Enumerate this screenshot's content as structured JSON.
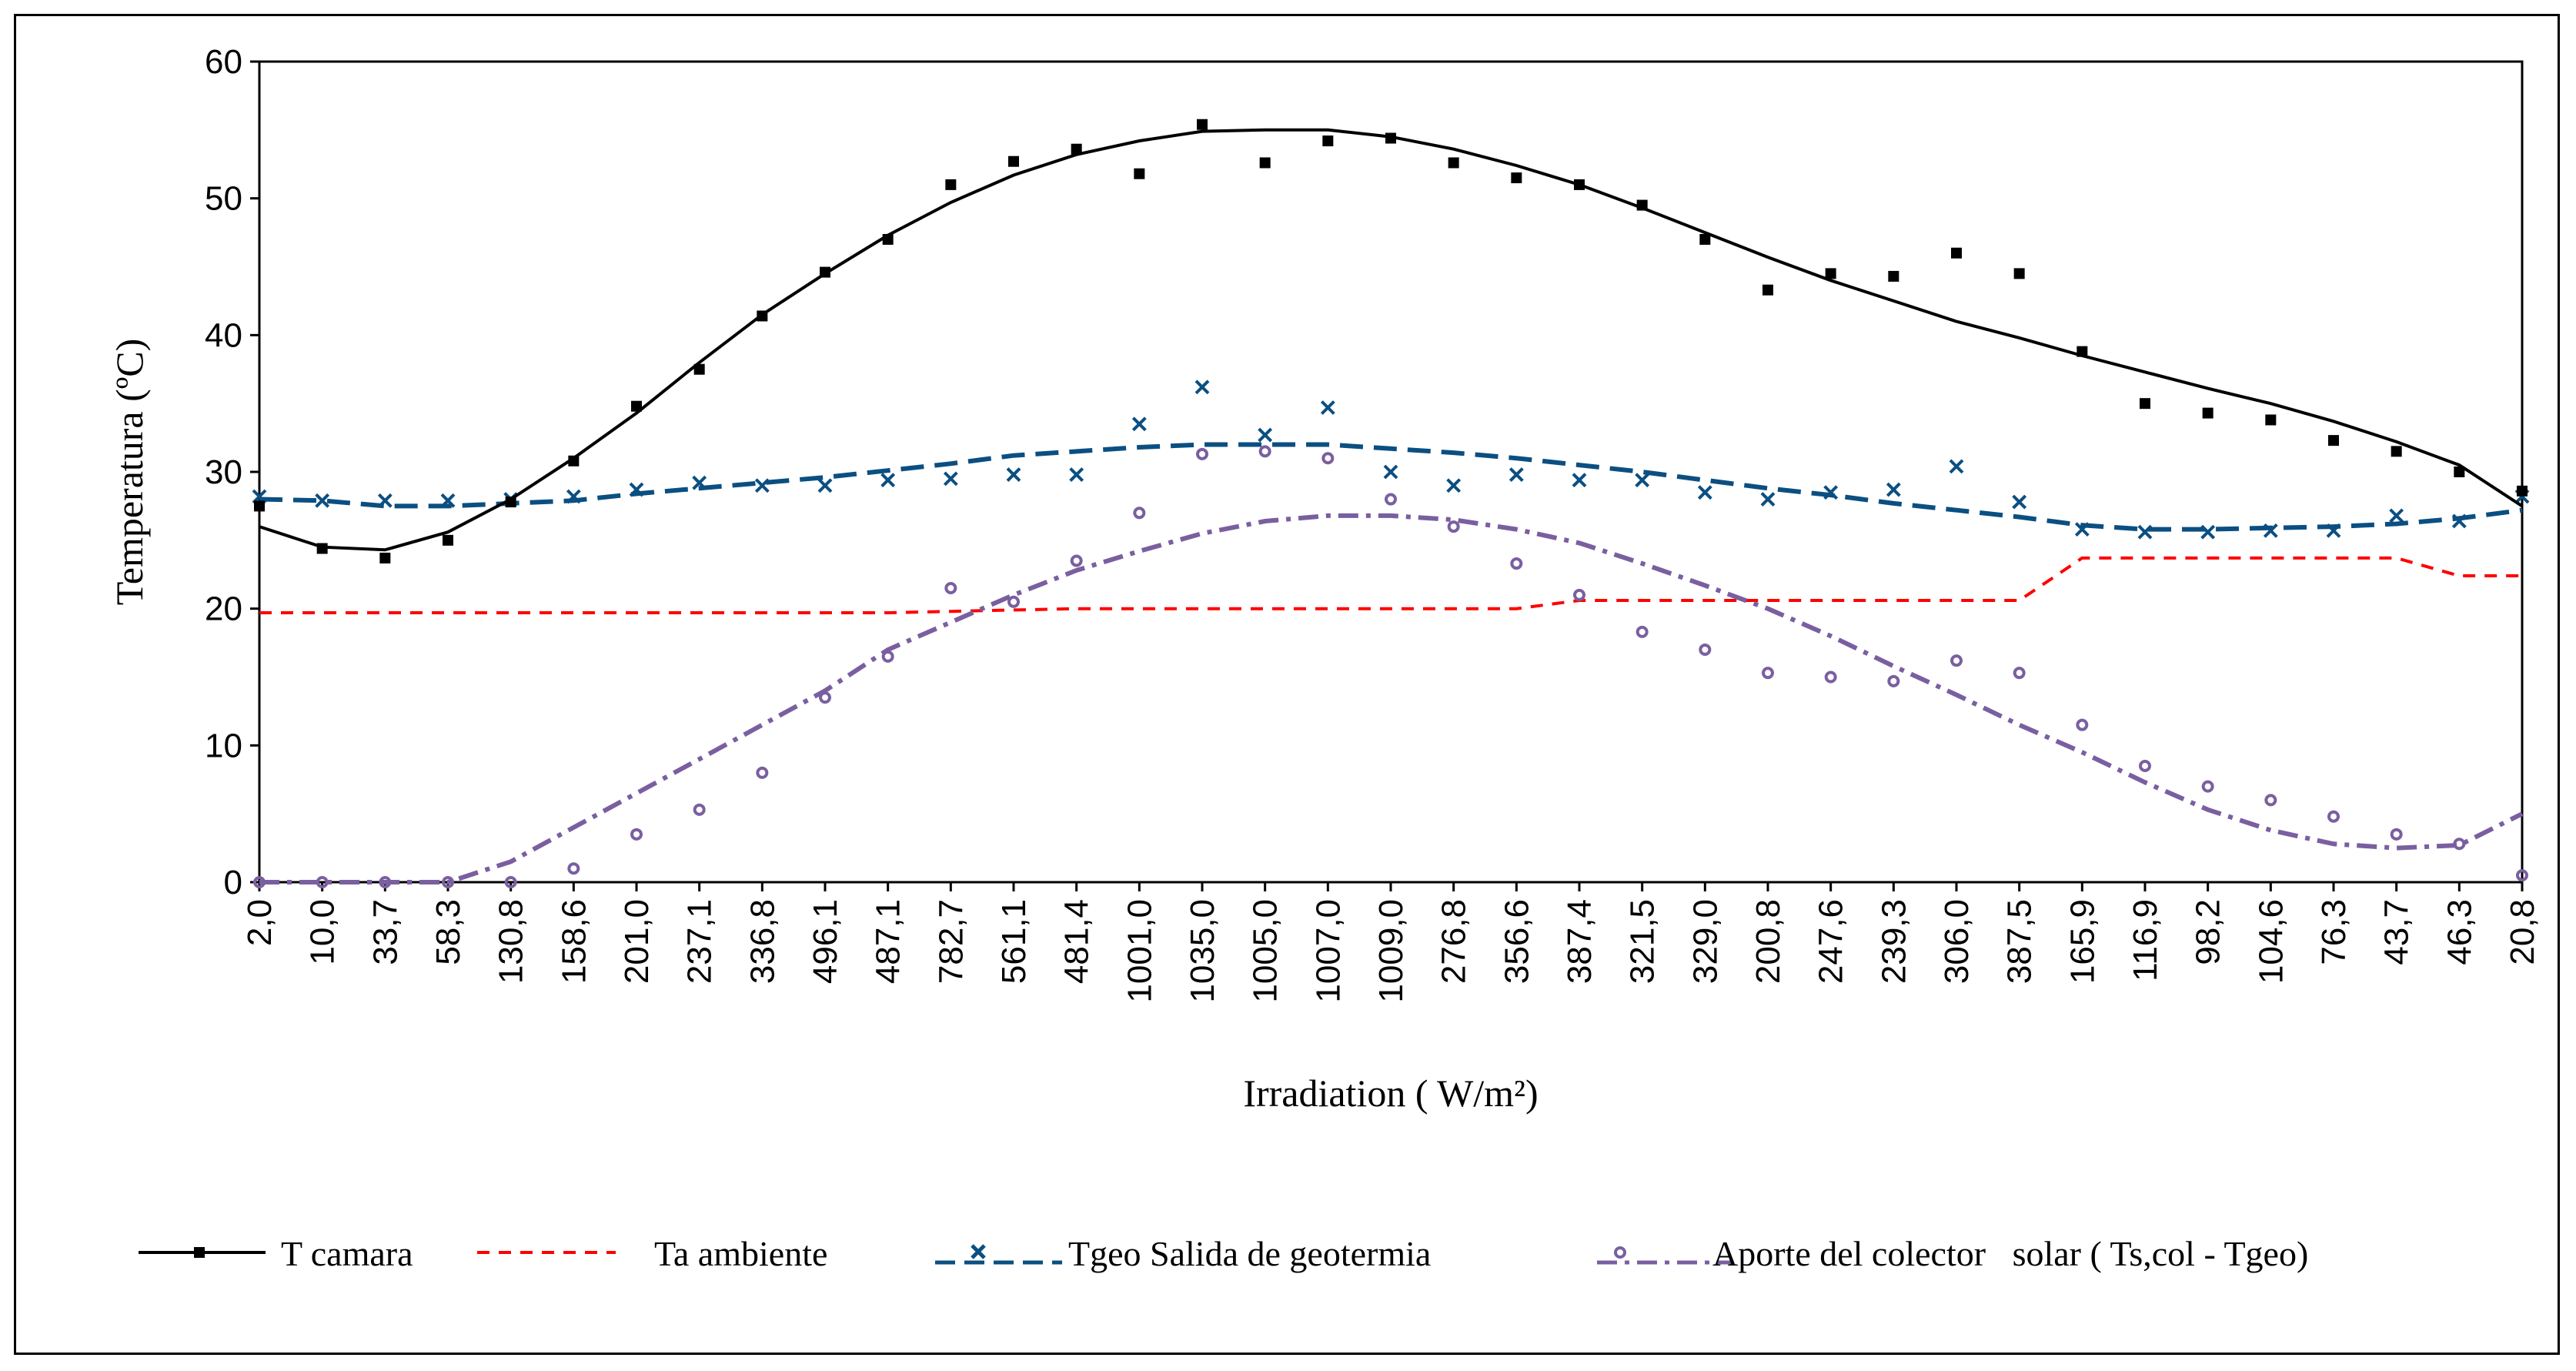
{
  "chart_data": {
    "type": "line",
    "title": "",
    "xlabel": "Irradiation ( W/m²)",
    "ylabel": "Temperatura (ºC)",
    "ylim": [
      0,
      60
    ],
    "yticks": [
      0,
      10,
      20,
      30,
      40,
      50,
      60
    ],
    "grid": false,
    "legend_position": "bottom",
    "colors": {
      "tcam": "#000000",
      "ta": "#ff0000",
      "tgeo": "#0b4f82",
      "aporte": "#7a5fa0"
    },
    "categories": [
      "2,0",
      "10,0",
      "33,7",
      "58,3",
      "130,8",
      "158,6",
      "201,0",
      "237,1",
      "336,8",
      "496,1",
      "487,1",
      "782,7",
      "561,1",
      "481,4",
      "1001,0",
      "1035,0",
      "1005,0",
      "1007,0",
      "1009,0",
      "276,8",
      "356,6",
      "387,4",
      "321,5",
      "329,0",
      "200,8",
      "247,6",
      "239,3",
      "306,0",
      "387,5",
      "165,9",
      "116,9",
      "98,2",
      "104,6",
      "76,3",
      "43,7",
      "46,3",
      "20,8"
    ],
    "series": [
      {
        "name": "T camara",
        "style": "solid-line-with-square-markers",
        "trend": [
          26.0,
          24.5,
          24.3,
          25.6,
          28.0,
          31.0,
          34.3,
          38.0,
          41.5,
          44.5,
          47.3,
          49.7,
          51.7,
          53.2,
          54.2,
          54.9,
          55.0,
          55.0,
          54.5,
          53.6,
          52.4,
          51.0,
          49.3,
          47.5,
          45.7,
          44.0,
          42.5,
          41.0,
          39.8,
          38.5,
          37.3,
          36.1,
          35.0,
          33.7,
          32.2,
          30.5,
          27.5
        ],
        "markers": [
          27.5,
          24.4,
          23.7,
          25.0,
          27.8,
          30.8,
          34.8,
          37.5,
          41.4,
          44.6,
          47.0,
          51.0,
          52.7,
          53.6,
          51.8,
          55.4,
          52.6,
          54.2,
          54.4,
          52.6,
          51.5,
          51.0,
          49.5,
          47.0,
          43.3,
          44.5,
          44.3,
          46.0,
          44.5,
          38.8,
          35.0,
          34.3,
          33.8,
          32.3,
          31.5,
          30.0,
          28.6
        ]
      },
      {
        "name": "Ta ambiente",
        "style": "dashed-line",
        "values": [
          19.7,
          19.7,
          19.7,
          19.7,
          19.7,
          19.7,
          19.7,
          19.7,
          19.7,
          19.7,
          19.7,
          19.8,
          19.9,
          20.0,
          20.0,
          20.0,
          20.0,
          20.0,
          20.0,
          20.0,
          20.0,
          20.6,
          20.6,
          20.6,
          20.6,
          20.6,
          20.6,
          20.6,
          20.6,
          23.7,
          23.7,
          23.7,
          23.7,
          23.7,
          23.7,
          22.4,
          22.4
        ]
      },
      {
        "name": "Tgeo Salida de geotermia",
        "style": "dash-line-with-x-markers",
        "trend": [
          28.0,
          27.9,
          27.5,
          27.5,
          27.7,
          27.9,
          28.4,
          28.8,
          29.2,
          29.6,
          30.1,
          30.6,
          31.2,
          31.5,
          31.8,
          32.0,
          32.0,
          32.0,
          31.7,
          31.4,
          31.0,
          30.5,
          30.0,
          29.4,
          28.8,
          28.3,
          27.7,
          27.2,
          26.7,
          26.1,
          25.8,
          25.8,
          25.9,
          26.0,
          26.2,
          26.6,
          27.2
        ],
        "markers": [
          28.2,
          27.9,
          27.9,
          27.9,
          28.0,
          28.2,
          28.7,
          29.2,
          29.0,
          29.0,
          29.4,
          29.5,
          29.8,
          29.8,
          33.5,
          36.2,
          32.7,
          34.7,
          30.0,
          29.0,
          29.8,
          29.4,
          29.4,
          28.5,
          28.0,
          28.5,
          28.7,
          30.4,
          27.8,
          25.8,
          25.6,
          25.6,
          25.7,
          25.7,
          26.8,
          26.4,
          28.2
        ]
      },
      {
        "name": "Aporte del colector   solar ( Ts,col - Tgeo)",
        "style": "dash-dot-line-with-circle-markers",
        "trend": [
          0.0,
          0.0,
          0.0,
          0.0,
          1.5,
          4.0,
          6.5,
          9.0,
          11.5,
          14.0,
          17.0,
          19.0,
          21.0,
          22.8,
          24.2,
          25.5,
          26.4,
          26.8,
          26.8,
          26.5,
          25.8,
          24.8,
          23.3,
          21.7,
          20.0,
          18.0,
          15.8,
          13.7,
          11.5,
          9.5,
          7.3,
          5.3,
          3.8,
          2.8,
          2.5,
          2.7,
          5.0
        ],
        "markers": [
          0.0,
          0.0,
          0.0,
          0.0,
          0.0,
          1.0,
          3.5,
          5.3,
          8.0,
          13.5,
          16.5,
          21.5,
          20.5,
          23.5,
          27.0,
          31.3,
          31.5,
          31.0,
          28.0,
          26.0,
          23.3,
          21.0,
          18.3,
          17.0,
          15.3,
          15.0,
          14.7,
          16.2,
          15.3,
          11.5,
          8.5,
          7.0,
          6.0,
          4.8,
          3.5,
          2.8,
          0.5
        ]
      }
    ]
  }
}
